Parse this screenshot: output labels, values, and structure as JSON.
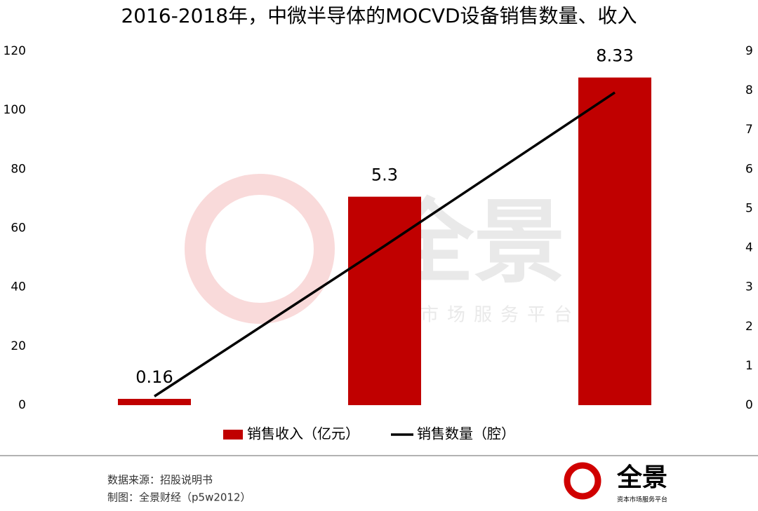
{
  "chart_data": {
    "type": "bar",
    "title": "2016-2018年，中微半导体的MOCVD设备销售数量、收入",
    "categories": [
      null,
      null,
      null
    ],
    "series": [
      {
        "name": "销售收入（亿元）",
        "type": "bar",
        "color": "#c00000",
        "axis": "y2",
        "values": [
          0.16,
          5.3,
          8.33
        ]
      },
      {
        "name": "销售数量（腔）",
        "type": "line",
        "color": "#000000",
        "values": [
          3,
          54,
          106
        ]
      }
    ],
    "ylim": [
      0,
      120
    ],
    "yticks": [
      0,
      20,
      40,
      60,
      80,
      100,
      120
    ],
    "y2lim": [
      0,
      9
    ],
    "y2ticks": [
      0,
      1,
      2,
      3,
      4,
      5,
      6,
      7,
      8,
      9
    ],
    "grid": false,
    "legend": "bottom"
  },
  "footer": {
    "source": "数据来源：招股说明书",
    "credit": "制图：全景财经（p5w2012）",
    "logo": "全景",
    "logo_sub": "资本市场服务平台"
  }
}
